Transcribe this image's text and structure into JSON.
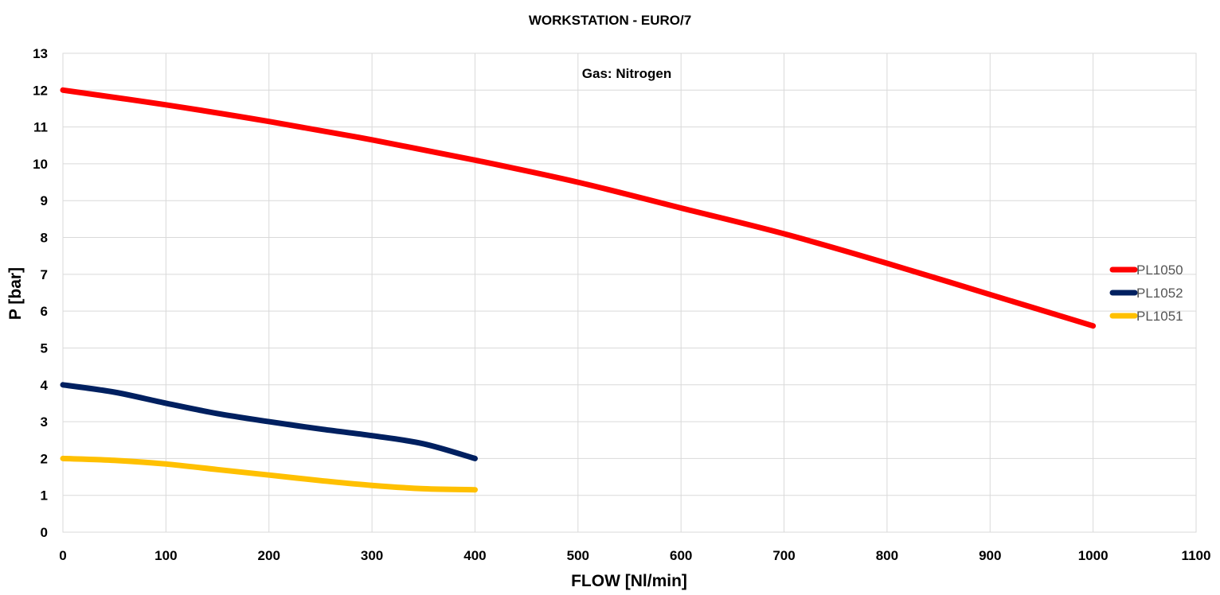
{
  "chart_data": {
    "type": "line",
    "title": "WORKSTATION  - EURO/7",
    "annotation": "Gas: Nitrogen",
    "xlabel": "FLOW [Nl/min]",
    "ylabel": "P [bar]",
    "xlim": [
      0,
      1100
    ],
    "ylim": [
      0,
      13
    ],
    "xticks": [
      "0",
      "100",
      "200",
      "300",
      "400",
      "500",
      "600",
      "700",
      "800",
      "900",
      "1000",
      "1100"
    ],
    "yticks": [
      "0",
      "1",
      "2",
      "3",
      "4",
      "5",
      "6",
      "7",
      "8",
      "9",
      "10",
      "11",
      "12",
      "13"
    ],
    "grid": true,
    "legend_position": "right",
    "series": [
      {
        "name": "PL1050",
        "color": "#ff0000",
        "x": [
          0,
          100,
          200,
          300,
          400,
          500,
          600,
          700,
          800,
          900,
          1000
        ],
        "y": [
          12.0,
          11.6,
          11.15,
          10.65,
          10.1,
          9.5,
          8.8,
          8.1,
          7.3,
          6.45,
          5.6
        ]
      },
      {
        "name": "PL1052",
        "color": "#002060",
        "x": [
          0,
          50,
          100,
          150,
          200,
          250,
          300,
          350,
          400
        ],
        "y": [
          4.0,
          3.8,
          3.5,
          3.22,
          3.0,
          2.8,
          2.62,
          2.4,
          2.0
        ]
      },
      {
        "name": "PL1051",
        "color": "#ffc000",
        "x": [
          0,
          50,
          100,
          150,
          200,
          250,
          300,
          350,
          400
        ],
        "y": [
          2.0,
          1.95,
          1.85,
          1.7,
          1.55,
          1.4,
          1.27,
          1.18,
          1.15
        ]
      }
    ]
  }
}
